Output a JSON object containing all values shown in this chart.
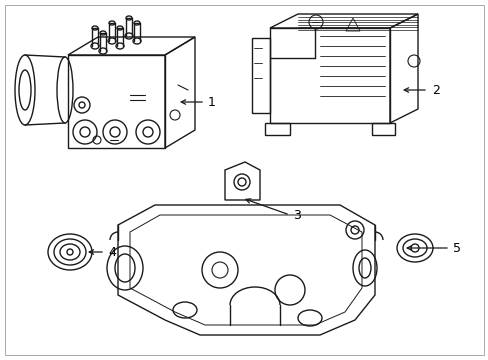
{
  "background_color": "#ffffff",
  "line_color": "#1a1a1a",
  "line_width": 1.0,
  "figsize": [
    4.89,
    3.6
  ],
  "dpi": 100,
  "border_color": "#cccccc"
}
